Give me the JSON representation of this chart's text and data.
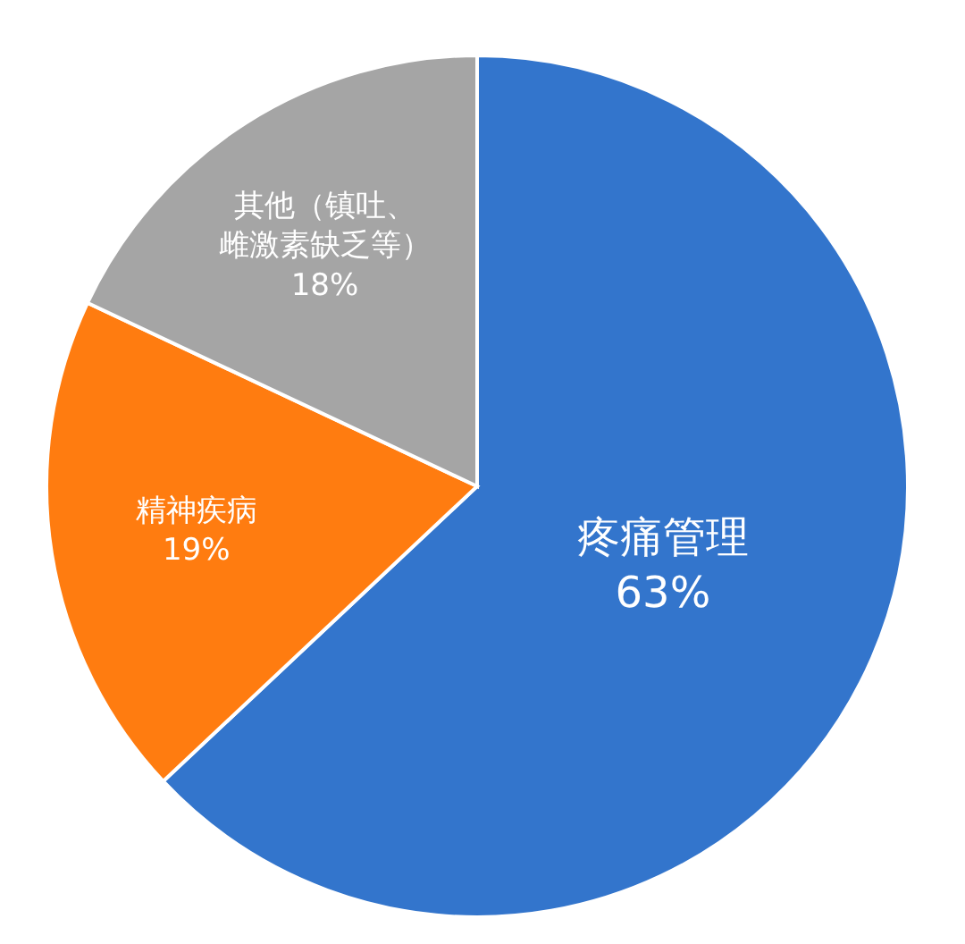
{
  "chart_data": {
    "type": "pie",
    "categories": [
      "疼痛管理",
      "精神疾病",
      "其他（镇吐、雌激素缺乏等）"
    ],
    "values": [
      63,
      19,
      18
    ],
    "value_labels": [
      "63%",
      "19%",
      "18%"
    ],
    "colors": [
      "#3375cc",
      "#ff7c10",
      "#a5a5a5"
    ],
    "legend": false
  }
}
